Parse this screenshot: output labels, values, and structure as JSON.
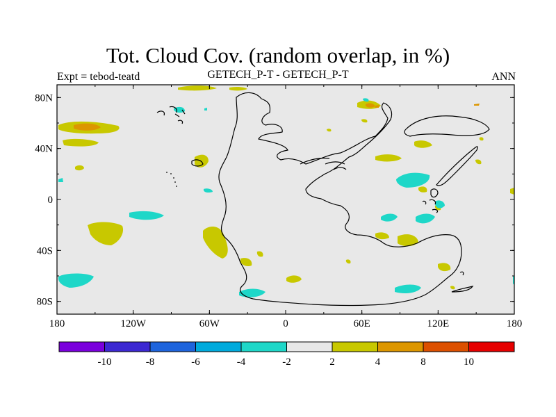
{
  "title": "Tot. Cloud Cov. (random overlap, in %)",
  "subtitle_left": "Expt = tebod-teatd",
  "subtitle_center": "GETECH_P-T - GETECH_P-T",
  "subtitle_right": "ANN",
  "map": {
    "background_color": "#e8e8e8",
    "x_ticks": [
      "180",
      "120W",
      "60W",
      "0",
      "60E",
      "120E",
      "180"
    ],
    "y_ticks": [
      "80N",
      "40N",
      "0",
      "40S",
      "80S"
    ]
  },
  "colorbar": {
    "colors": [
      "#7a00dc",
      "#3c28d2",
      "#1e64dc",
      "#00aadc",
      "#1ed7c8",
      "#e8e8e8",
      "#c8c800",
      "#dc9600",
      "#dc5000",
      "#e60000"
    ],
    "labels": [
      "-10",
      "-8",
      "-6",
      "-4",
      "-2",
      "2",
      "4",
      "8",
      "10"
    ]
  }
}
